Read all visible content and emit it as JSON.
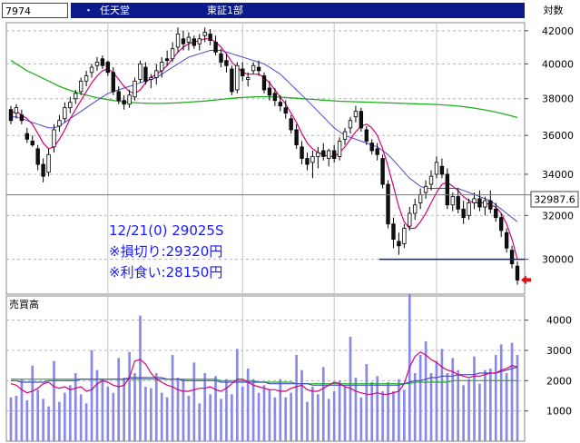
{
  "header": {
    "code": "7974",
    "dot": "・",
    "name": "任天堂",
    "market": "東証1部",
    "scale": "対数"
  },
  "annotation": {
    "line1": "12/21(0) 29025S",
    "line2": "※損切り:29320円",
    "line3": "※利食い:28150円"
  },
  "price_marker": "32987.6",
  "volume_label": "売買高",
  "colors": {
    "title_bg": "#0a1a8c",
    "annotation_text": "#1a1aff",
    "ma_short": "#d4007a",
    "ma_mid": "#4a4ac8",
    "ma_long": "#20b020",
    "volume_bar": "#8a8ae6",
    "hline": "#1a1a9a",
    "arrow": "#e01010"
  },
  "chart_data": [
    {
      "type": "candlestick",
      "scale": "log",
      "ylim": [
        28500,
        42500
      ],
      "yticks": [
        30000,
        32000,
        34000,
        36000,
        38000,
        40000,
        42000
      ],
      "current_price": 32987.6,
      "horizontal_line": 30000,
      "candles": [
        [
          37400,
          37600,
          36600,
          36800
        ],
        [
          37200,
          37700,
          36900,
          37500
        ],
        [
          37100,
          37400,
          36600,
          36800
        ],
        [
          36100,
          36400,
          35600,
          35800
        ],
        [
          35700,
          36000,
          35400,
          35500
        ],
        [
          35300,
          35500,
          34200,
          34500
        ],
        [
          34500,
          34800,
          33600,
          33900
        ],
        [
          34100,
          35300,
          33900,
          35000
        ],
        [
          35400,
          36600,
          35100,
          36300
        ],
        [
          36500,
          37100,
          36200,
          36800
        ],
        [
          36900,
          37800,
          36700,
          37500
        ],
        [
          37500,
          38100,
          37200,
          37800
        ],
        [
          38000,
          38500,
          37700,
          38300
        ],
        [
          38400,
          39200,
          38200,
          39000
        ],
        [
          39000,
          39600,
          38700,
          39300
        ],
        [
          39500,
          40000,
          39200,
          39800
        ],
        [
          39900,
          40400,
          39600,
          40100
        ],
        [
          40300,
          40500,
          39700,
          39900
        ],
        [
          40100,
          40200,
          39300,
          39500
        ],
        [
          39500,
          39800,
          38200,
          38400
        ],
        [
          38400,
          38700,
          37700,
          37900
        ],
        [
          37900,
          38200,
          37400,
          37700
        ],
        [
          37700,
          38500,
          37500,
          38200
        ],
        [
          38100,
          39200,
          37900,
          39000
        ],
        [
          39100,
          40200,
          38900,
          40000
        ],
        [
          39800,
          40100,
          38800,
          39000
        ],
        [
          39100,
          39400,
          38600,
          39200
        ],
        [
          39200,
          40000,
          38800,
          39600
        ],
        [
          39600,
          40400,
          39200,
          40100
        ],
        [
          40300,
          40800,
          39900,
          40200
        ],
        [
          40300,
          41300,
          40100,
          40900
        ],
        [
          41000,
          42200,
          40700,
          41800
        ],
        [
          41500,
          42000,
          40800,
          41200
        ],
        [
          41300,
          41900,
          40800,
          41600
        ],
        [
          41500,
          41700,
          40900,
          41100
        ],
        [
          41200,
          41800,
          40800,
          41500
        ],
        [
          41700,
          42200,
          41300,
          41900
        ],
        [
          41800,
          42100,
          41100,
          41400
        ],
        [
          41300,
          41700,
          40500,
          40700
        ],
        [
          40600,
          40900,
          39800,
          40100
        ],
        [
          40200,
          40600,
          39500,
          39900
        ],
        [
          39700,
          39900,
          38200,
          38400
        ],
        [
          38500,
          40100,
          38300,
          39900
        ],
        [
          39700,
          40100,
          39000,
          39300
        ],
        [
          39100,
          39500,
          38700,
          39200
        ],
        [
          39600,
          40100,
          39400,
          39900
        ],
        [
          39800,
          40200,
          39300,
          39600
        ],
        [
          39300,
          39500,
          38300,
          38500
        ],
        [
          38600,
          39000,
          37900,
          38200
        ],
        [
          38300,
          38600,
          37600,
          37900
        ],
        [
          37800,
          38200,
          37300,
          37600
        ],
        [
          37500,
          37900,
          36900,
          37200
        ],
        [
          36900,
          37100,
          36100,
          36300
        ],
        [
          36300,
          36600,
          35300,
          35500
        ],
        [
          35400,
          35700,
          34500,
          34800
        ],
        [
          34800,
          35100,
          34200,
          34500
        ],
        [
          34600,
          35200,
          33800,
          34900
        ],
        [
          34900,
          35400,
          34300,
          35100
        ],
        [
          35200,
          35600,
          34700,
          34900
        ],
        [
          34800,
          35300,
          34400,
          35200
        ],
        [
          35200,
          35500,
          34600,
          34800
        ],
        [
          34900,
          35900,
          34700,
          35700
        ],
        [
          35800,
          36400,
          35500,
          36200
        ],
        [
          36400,
          37000,
          36100,
          36800
        ],
        [
          37000,
          37600,
          36700,
          37300
        ],
        [
          37300,
          37500,
          36200,
          36400
        ],
        [
          36300,
          36500,
          35500,
          35700
        ],
        [
          35600,
          35800,
          35000,
          35200
        ],
        [
          35300,
          35600,
          34700,
          35000
        ],
        [
          34800,
          35000,
          33300,
          33500
        ],
        [
          33500,
          33700,
          31400,
          31600
        ],
        [
          31600,
          31900,
          30500,
          30900
        ],
        [
          30800,
          31200,
          30200,
          30600
        ],
        [
          30700,
          31600,
          30500,
          31400
        ],
        [
          31500,
          32400,
          31300,
          32100
        ],
        [
          32100,
          32800,
          31800,
          32500
        ],
        [
          32600,
          33300,
          32300,
          33000
        ],
        [
          33100,
          33700,
          32800,
          33400
        ],
        [
          33500,
          34200,
          33200,
          33900
        ],
        [
          34000,
          34900,
          33800,
          34600
        ],
        [
          34400,
          34800,
          33800,
          34000
        ],
        [
          34000,
          34300,
          32300,
          32500
        ],
        [
          32500,
          33100,
          32200,
          32900
        ],
        [
          32900,
          33300,
          32100,
          32300
        ],
        [
          32300,
          32700,
          31600,
          31900
        ],
        [
          32000,
          32800,
          31800,
          32600
        ],
        [
          32600,
          33100,
          32300,
          32800
        ],
        [
          32800,
          33200,
          32200,
          32400
        ],
        [
          32400,
          32900,
          32000,
          32700
        ],
        [
          32700,
          33200,
          32100,
          32300
        ],
        [
          32300,
          32600,
          31700,
          31900
        ],
        [
          31900,
          32100,
          31000,
          31300
        ],
        [
          31200,
          31400,
          30300,
          30500
        ],
        [
          30400,
          30600,
          29600,
          29800
        ],
        [
          29700,
          29900,
          28900,
          29100
        ]
      ],
      "ma_short": [
        37200,
        37300,
        37100,
        36900,
        36600,
        36100,
        35600,
        35300,
        35400,
        35800,
        36300,
        36900,
        37400,
        37900,
        38400,
        38900,
        39300,
        39600,
        39700,
        39500,
        39100,
        38700,
        38400,
        38300,
        38500,
        38900,
        39200,
        39400,
        39600,
        39900,
        40300,
        40700,
        41000,
        41200,
        41300,
        41400,
        41500,
        41500,
        41300,
        41000,
        40600,
        40100,
        39800,
        39500,
        39400,
        39400,
        39400,
        39200,
        38900,
        38500,
        38100,
        37700,
        37200,
        36700,
        36100,
        35600,
        35300,
        35100,
        35000,
        34900,
        34900,
        35100,
        35400,
        35800,
        36200,
        36500,
        36600,
        36400,
        36000,
        35300,
        34400,
        33400,
        32400,
        31700,
        31400,
        31400,
        31700,
        32100,
        32600,
        33100,
        33500,
        33600,
        33400,
        33200,
        32900,
        32700,
        32600,
        32600,
        32600,
        32500,
        32400,
        32100,
        31600,
        30900,
        30000
      ],
      "ma_mid": [
        37000,
        37000,
        36900,
        36800,
        36700,
        36600,
        36500,
        36400,
        36400,
        36500,
        36700,
        36900,
        37100,
        37300,
        37500,
        37700,
        37900,
        38100,
        38300,
        38400,
        38500,
        38600,
        38700,
        38800,
        38900,
        39000,
        39100,
        39200,
        39400,
        39600,
        39800,
        40000,
        40200,
        40400,
        40500,
        40600,
        40700,
        40800,
        40800,
        40800,
        40700,
        40600,
        40500,
        40400,
        40300,
        40200,
        40100,
        40000,
        39800,
        39600,
        39400,
        39100,
        38800,
        38500,
        38200,
        37900,
        37600,
        37300,
        37000,
        36700,
        36400,
        36200,
        36000,
        35900,
        35800,
        35700,
        35600,
        35500,
        35400,
        35200,
        35000,
        34700,
        34400,
        34100,
        33800,
        33600,
        33400,
        33300,
        33300,
        33300,
        33300,
        33300,
        33300,
        33300,
        33200,
        33100,
        33000,
        32900,
        32800,
        32700,
        32500,
        32300,
        32100,
        31900,
        31700
      ],
      "ma_long": [
        40200,
        40000,
        39800,
        39600,
        39450,
        39300,
        39150,
        39000,
        38850,
        38700,
        38580,
        38470,
        38370,
        38280,
        38200,
        38130,
        38060,
        38000,
        37950,
        37900,
        37860,
        37830,
        37800,
        37780,
        37760,
        37750,
        37740,
        37740,
        37740,
        37750,
        37760,
        37770,
        37790,
        37810,
        37830,
        37850,
        37870,
        37900,
        37930,
        37960,
        37990,
        38020,
        38050,
        38070,
        38090,
        38100,
        38110,
        38110,
        38110,
        38100,
        38090,
        38070,
        38050,
        38030,
        38000,
        37980,
        37960,
        37940,
        37920,
        37900,
        37880,
        37860,
        37850,
        37840,
        37830,
        37820,
        37810,
        37800,
        37790,
        37780,
        37770,
        37760,
        37750,
        37740,
        37730,
        37720,
        37710,
        37700,
        37690,
        37680,
        37660,
        37640,
        37620,
        37590,
        37560,
        37520,
        37480,
        37430,
        37380,
        37320,
        37260,
        37190,
        37120,
        37040,
        36960
      ]
    },
    {
      "type": "bar",
      "title": "売買高",
      "ylim": [
        0,
        4800
      ],
      "yticks": [
        1000,
        2000,
        3000,
        4000
      ],
      "volume": [
        1450,
        1500,
        2050,
        1350,
        2500,
        1700,
        1400,
        1150,
        2650,
        1300,
        1600,
        1850,
        2250,
        1550,
        1250,
        3000,
        2350,
        2050,
        1800,
        1600,
        2750,
        2100,
        2950,
        2250,
        4150,
        1800,
        1750,
        2250,
        1600,
        1450,
        2850,
        2100,
        2050,
        1500,
        2600,
        1250,
        2250,
        1550,
        2150,
        1400,
        2050,
        1550,
        3050,
        1800,
        2400,
        2050,
        1600,
        1850,
        1700,
        1450,
        2050,
        1450,
        1600,
        2850,
        2350,
        1300,
        1800,
        1550,
        2450,
        1400,
        1650,
        2000,
        1800,
        3450,
        2100,
        1450,
        2550,
        1950,
        2150,
        1650,
        1950,
        1650,
        2050,
        1700,
        4850,
        2250,
        2850,
        3300,
        2250,
        2650,
        3050,
        2250,
        2750,
        2350,
        1850,
        2050,
        2800,
        1900,
        2350,
        2400,
        2850,
        3200,
        2250,
        3250,
        2850
      ],
      "vol_ma_short": [
        1900,
        1850,
        1700,
        1600,
        1650,
        1750,
        1900,
        1950,
        1800,
        1750,
        1800,
        1700,
        1750,
        1800,
        1650,
        1700,
        1900,
        2000,
        1950,
        1850,
        1800,
        1850,
        2100,
        2650,
        2700,
        2550,
        2250,
        2050,
        1950,
        1850,
        1800,
        1700,
        1650,
        1650,
        1700,
        1750,
        1750,
        1800,
        1700,
        1650,
        1750,
        1900,
        2050,
        2050,
        1950,
        1850,
        1800,
        1750,
        1700,
        1700,
        1650,
        1650,
        1750,
        1800,
        1850,
        1700,
        1650,
        1650,
        1750,
        1850,
        1950,
        1900,
        1800,
        1750,
        1650,
        1600,
        1550,
        1550,
        1600,
        1550,
        1550,
        1600,
        1650,
        1900,
        2450,
        2800,
        2950,
        2850,
        2700,
        2600,
        2450,
        2350,
        2300,
        2200,
        2150,
        2100,
        2150,
        2150,
        2200,
        2250,
        2250,
        2350,
        2400,
        2500,
        2450
      ],
      "vol_ma_mid": [
        2000,
        2000,
        1950,
        1950,
        1950,
        1950,
        1950,
        2000,
        2000,
        2000,
        2000,
        2000,
        2000,
        2050,
        2050,
        2050,
        2050,
        2050,
        2050,
        2050,
        2050,
        2050,
        2100,
        2100,
        2100,
        2100,
        2100,
        2100,
        2100,
        2050,
        2050,
        2050,
        2000,
        2000,
        2000,
        2000,
        2000,
        2000,
        2000,
        1950,
        1950,
        1950,
        1950,
        1950,
        1950,
        1950,
        1950,
        1950,
        1900,
        1900,
        1900,
        1900,
        1900,
        1900,
        1900,
        1900,
        1850,
        1850,
        1850,
        1850,
        1850,
        1850,
        1850,
        1850,
        1850,
        1850,
        1850,
        1850,
        1850,
        1850,
        1850,
        1850,
        1850,
        1900,
        1950,
        2000,
        2000,
        2050,
        2100,
        2100,
        2150,
        2150,
        2150,
        2200,
        2200,
        2200,
        2200,
        2250,
        2250,
        2250,
        2250,
        2300,
        2350,
        2400,
        2450
      ],
      "vol_ma_long": [
        2050,
        2050,
        2050,
        2050,
        2050,
        2050,
        2050,
        2050,
        2050,
        2050,
        2050,
        2050,
        2050,
        2050,
        2050,
        2050,
        2050,
        2050,
        2050,
        2050,
        2050,
        2050,
        2050,
        2050,
        2050,
        2050,
        2050,
        2050,
        2050,
        2050,
        2050,
        2050,
        2050,
        2050,
        2050,
        2050,
        2050,
        2050,
        2050,
        2000,
        2000,
        2000,
        2000,
        2000,
        2000,
        2000,
        1950,
        1950,
        1950,
        1950,
        1950,
        1950,
        1950,
        1900,
        1900,
        1900,
        1900,
        1900,
        1900,
        1900,
        1900,
        1900,
        1900,
        1900,
        1900,
        1900,
        1900,
        1900,
        1900,
        1900,
        1900,
        1900,
        1900,
        1900,
        1900,
        1950,
        1950,
        1950,
        1950,
        1950,
        1950,
        1950,
        2000,
        2000,
        2000,
        2000,
        2000,
        2000,
        2000,
        2000,
        2000,
        2000,
        2000,
        2000,
        2000
      ]
    }
  ]
}
